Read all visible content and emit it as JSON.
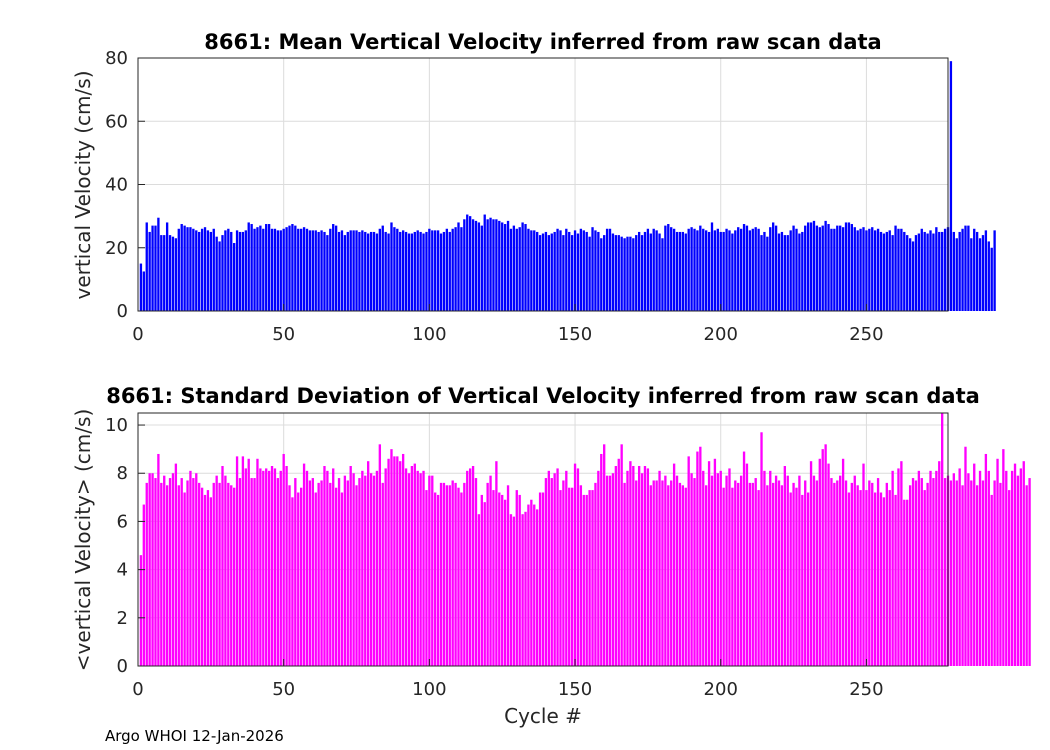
{
  "footer": "Argo WHOI 12-Jan-2026",
  "chart_data": [
    {
      "type": "bar",
      "title": "8661: Mean Vertical Velocity inferred from raw scan data",
      "xlabel": "",
      "ylabel": "vertical Velocity (cm/s)",
      "xlim": [
        0,
        278
      ],
      "ylim": [
        0,
        80
      ],
      "xticks": [
        0,
        50,
        100,
        150,
        200,
        250
      ],
      "yticks": [
        0,
        20,
        40,
        60,
        80
      ],
      "grid": true,
      "color": "#0000ff",
      "x_start": 1,
      "values": [
        15,
        12.5,
        28,
        25,
        27,
        27,
        29.5,
        24,
        24,
        28,
        24,
        23.5,
        23,
        26,
        27.5,
        27,
        26.5,
        26.5,
        26,
        25.5,
        25,
        26,
        26.5,
        25.5,
        25,
        26,
        23.5,
        22,
        24,
        25.5,
        26,
        25,
        21.5,
        25.5,
        25,
        25,
        25.5,
        28,
        27.5,
        26,
        26.5,
        27,
        26,
        27.5,
        27.5,
        26,
        26,
        25.5,
        25.5,
        26,
        26.5,
        27,
        27.5,
        27,
        26,
        26,
        26.5,
        26,
        25.5,
        25.5,
        25.5,
        25,
        25.5,
        25,
        24,
        26,
        27.5,
        27,
        25,
        25.5,
        24,
        25,
        25.5,
        25.5,
        25.5,
        25,
        25.5,
        25,
        24.5,
        25,
        25,
        24.5,
        26,
        27,
        25,
        24.5,
        28,
        26.5,
        26,
        25,
        25.5,
        25,
        24.5,
        24.5,
        25,
        25.5,
        25,
        24.5,
        25,
        26,
        25.5,
        25.5,
        25.5,
        24.5,
        25,
        26,
        25,
        26,
        26.5,
        28,
        26.5,
        29,
        30.5,
        30,
        29,
        28.5,
        28,
        27,
        30.5,
        29,
        29.5,
        29,
        29,
        28.5,
        28,
        27.5,
        28.5,
        26,
        27,
        26,
        26.5,
        28,
        27.5,
        26,
        25.5,
        25.5,
        25,
        24,
        24.5,
        25,
        24,
        24.5,
        25,
        26,
        25.5,
        24,
        26,
        25,
        24,
        25.5,
        24.5,
        26,
        25.5,
        25,
        23.5,
        26.5,
        25.5,
        25,
        23,
        24,
        26,
        26,
        24.5,
        24,
        24,
        23.5,
        23,
        23.5,
        23.5,
        23,
        24,
        25,
        24,
        25,
        26,
        24.5,
        26,
        25.5,
        24.5,
        23,
        27,
        27.5,
        26.5,
        26,
        25,
        25,
        25,
        24.5,
        26,
        26.5,
        26,
        25.5,
        27,
        26,
        25.5,
        25,
        28,
        25.5,
        26,
        25,
        25,
        26,
        25.5,
        24.5,
        25.5,
        26.5,
        26,
        27.5,
        27,
        25.5,
        26,
        26.5,
        26,
        24,
        25,
        23.5,
        26.5,
        28,
        27,
        24.5,
        25,
        24,
        24,
        25.5,
        27,
        26,
        24.5,
        25,
        27,
        28,
        28,
        28.5,
        27,
        26.5,
        27,
        28.5,
        27.5,
        26,
        26,
        27,
        27,
        26.5,
        28,
        28,
        27.5,
        26.5,
        25.5,
        26,
        26.5,
        25.5,
        26,
        26.5,
        25.5,
        26,
        25,
        24.5,
        25,
        25.5,
        24,
        27,
        26,
        26,
        25,
        24,
        23,
        22,
        24,
        24.5,
        26,
        25,
        24.5,
        25.5,
        24.5,
        26.5,
        25,
        25,
        26,
        26.5,
        79,
        25,
        23,
        25,
        26,
        27,
        27,
        23,
        26,
        25,
        23,
        24,
        25.5,
        22,
        20,
        25.5
      ]
    },
    {
      "type": "bar",
      "title": "8661: Standard Deviation of Vertical Velocity inferred from raw scan data",
      "xlabel": "Cycle #",
      "ylabel": "<vertical Velocity> (cm/s)",
      "xlim": [
        0,
        278
      ],
      "ylim": [
        0,
        10.5
      ],
      "xticks": [
        0,
        50,
        100,
        150,
        200,
        250
      ],
      "yticks": [
        0,
        2,
        4,
        6,
        8,
        10
      ],
      "grid": true,
      "color": "#ff00ff",
      "x_start": 1,
      "values": [
        4.6,
        6.7,
        7.6,
        8,
        8,
        7.8,
        8.8,
        7.6,
        7.9,
        7.5,
        7.8,
        8,
        8.4,
        7.5,
        7.8,
        7.2,
        7.7,
        8.1,
        7.8,
        8,
        7.6,
        7.4,
        7.1,
        7.3,
        7,
        7.6,
        7.9,
        7.6,
        8.3,
        7.9,
        7.6,
        7.5,
        7.4,
        8.7,
        7.8,
        8.7,
        8.2,
        8.6,
        7.8,
        7.8,
        8.6,
        8.2,
        8.1,
        8.2,
        8.1,
        8.3,
        8.2,
        7.8,
        8.1,
        8.8,
        8.3,
        7.5,
        7,
        7.8,
        7.2,
        7.4,
        8.4,
        8.1,
        7.7,
        7.8,
        7.2,
        7.6,
        7.7,
        8.3,
        8.1,
        7.6,
        8.2,
        7.4,
        7.8,
        7.2,
        7.9,
        7.7,
        8.3,
        8,
        7.5,
        7.8,
        8.1,
        7.9,
        8.5,
        8,
        7.9,
        8.1,
        9.2,
        7.6,
        8.2,
        8.6,
        9,
        8.7,
        8.7,
        8.5,
        8.8,
        8.2,
        8,
        8.3,
        8.4,
        8.1,
        8,
        8.1,
        7.3,
        7.9,
        7.9,
        7.2,
        7.1,
        7.6,
        7.6,
        7.5,
        7.5,
        7.7,
        7.6,
        7.4,
        7.2,
        7.6,
        8.1,
        8.2,
        8.3,
        7.8,
        6.3,
        7.1,
        6.8,
        7.6,
        7.9,
        7.3,
        8.5,
        7.2,
        7.1,
        6.9,
        7.5,
        6.3,
        6.2,
        7.3,
        7.1,
        6.3,
        6.4,
        6.7,
        6.9,
        6.7,
        6.5,
        7.2,
        7.2,
        7.8,
        8.1,
        7.8,
        8,
        8.2,
        7.3,
        7.7,
        8.1,
        7.4,
        7.4,
        8.4,
        8.2,
        7.5,
        7.1,
        7.1,
        7.3,
        7.3,
        7.6,
        8.1,
        8.8,
        9.2,
        7.9,
        7.9,
        8,
        8.3,
        8.6,
        9.2,
        7.6,
        8.1,
        8.5,
        8.3,
        7.7,
        8.3,
        8,
        8.3,
        8.2,
        7.5,
        7.7,
        7.7,
        8.1,
        7.7,
        7.9,
        7.5,
        7.7,
        8.4,
        7.9,
        7.6,
        7.5,
        7.4,
        8.7,
        8,
        7.8,
        8.9,
        9.1,
        8.1,
        7.5,
        8.5,
        7.9,
        8.6,
        8,
        8.1,
        7.4,
        7.9,
        8.2,
        7.4,
        7.7,
        7.6,
        7.9,
        8.9,
        8.4,
        7.6,
        7.6,
        7.8,
        7.3,
        9.7,
        8.1,
        7.5,
        8.1,
        7.6,
        7.9,
        7.7,
        7.5,
        8.3,
        7.9,
        7.2,
        7.6,
        7.4,
        7.9,
        7.1,
        7.7,
        7.2,
        8.5,
        7.9,
        7.7,
        8.6,
        9,
        9.2,
        8.4,
        7.8,
        7.6,
        7.7,
        7.9,
        8.6,
        7.7,
        7.2,
        7.6,
        7.9,
        7.5,
        7.3,
        8.4,
        7.3,
        7.7,
        7.6,
        7.2,
        7.8,
        7.2,
        7,
        7.6,
        7.3,
        8.1,
        7.1,
        8.2,
        8.5,
        6.9,
        6.9,
        7.5,
        7.8,
        7.7,
        8.1,
        7.8,
        7.3,
        7.6,
        8.1,
        7.8,
        8.1,
        8.5,
        10.5,
        7.8,
        7.9,
        7.7,
        8,
        7.7,
        8.2,
        7.5,
        9.1,
        8,
        7.7,
        8.4,
        7.5,
        8.1,
        7.7,
        8.8,
        8.1,
        7.1,
        7.7,
        8.6,
        7.6,
        9,
        8.1,
        7.3,
        8.1,
        8.4,
        7.9,
        8.2,
        8.5,
        7.5,
        7.8
      ]
    }
  ]
}
